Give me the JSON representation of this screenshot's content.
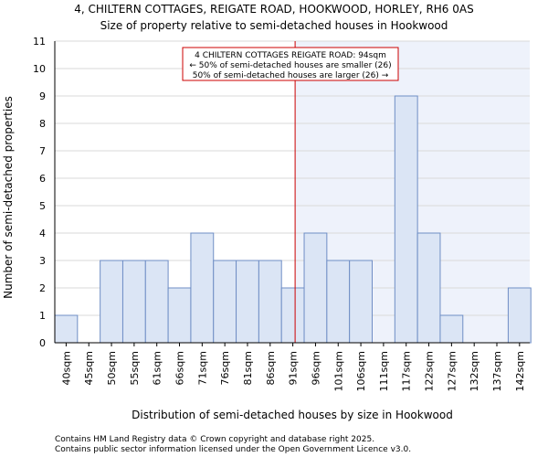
{
  "chart_data": {
    "type": "bar",
    "title": "4, CHILTERN COTTAGES, REIGATE ROAD, HOOKWOOD, HORLEY, RH6 0AS",
    "subtitle": "Size of property relative to semi-detached houses in Hookwood",
    "xlabel": "Distribution of semi-detached houses by size in Hookwood",
    "ylabel": "Number of semi-detached properties",
    "ylim": [
      0,
      11
    ],
    "yticks": [
      "0",
      "1",
      "2",
      "3",
      "4",
      "5",
      "6",
      "7",
      "8",
      "9",
      "10",
      "11"
    ],
    "categories": [
      "40sqm",
      "45sqm",
      "50sqm",
      "55sqm",
      "61sqm",
      "66sqm",
      "71sqm",
      "76sqm",
      "81sqm",
      "86sqm",
      "91sqm",
      "96sqm",
      "101sqm",
      "106sqm",
      "111sqm",
      "117sqm",
      "122sqm",
      "127sqm",
      "132sqm",
      "137sqm",
      "142sqm"
    ],
    "values": [
      1,
      0,
      3,
      3,
      3,
      2,
      4,
      3,
      3,
      3,
      2,
      4,
      3,
      3,
      0,
      9,
      4,
      1,
      0,
      0,
      2
    ],
    "grid": true,
    "marker": {
      "position_bin": 10.6,
      "color": "#cc0000"
    },
    "annotation": {
      "line1": "4 CHILTERN COTTAGES REIGATE ROAD: 94sqm",
      "line2": "← 50% of semi-detached houses are smaller (26)",
      "line3": "50% of semi-detached houses are larger (26) →"
    },
    "colors": {
      "bar_fill": "#dbe5f5",
      "bar_stroke": "#6f8ec5",
      "highlight_bg": "#eef2fb",
      "grid": "#d9d9d9"
    }
  },
  "footer": {
    "line1": "Contains HM Land Registry data © Crown copyright and database right 2025.",
    "line2": "Contains public sector information licensed under the Open Government Licence v3.0."
  }
}
